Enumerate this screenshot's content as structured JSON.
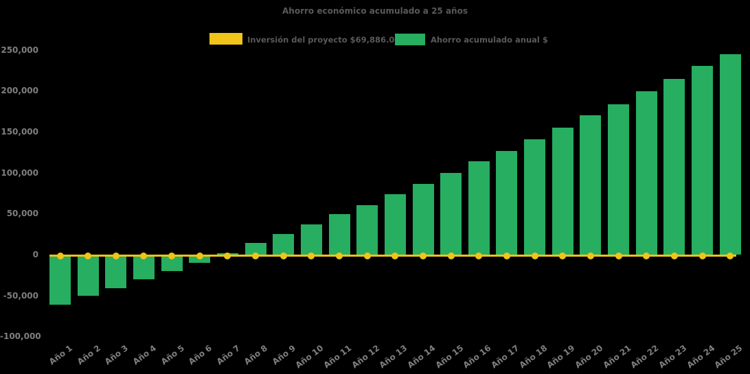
{
  "chart": {
    "title": "Ahorro económico acumulado a 25 años",
    "background_color": "#000000",
    "title_color": "#595959",
    "axis_label_color": "#7f7f7f",
    "legend": [
      {
        "label": "Inversión del proyecto $69,886.02",
        "color": "#f0c419",
        "type": "line"
      },
      {
        "label": "Ahorro acumulado anual $",
        "color": "#27ae60",
        "type": "bar"
      }
    ]
  },
  "chart_data": {
    "type": "bar",
    "title": "Ahorro económico acumulado a 25 años",
    "categories": [
      "Año 1",
      "Año 2",
      "Año 3",
      "Año 4",
      "Año 5",
      "Año 6",
      "Año 7",
      "Año 8",
      "Año 9",
      "Año 10",
      "Año 11",
      "Año 12",
      "Año 13",
      "Año 14",
      "Año 15",
      "Año 16",
      "Año 17",
      "Año 18",
      "Año 19",
      "Año 20",
      "Año 21",
      "Año 22",
      "Año 23",
      "Año 24",
      "Año 25"
    ],
    "series": [
      {
        "name": "Ahorro acumulado anual $",
        "type": "bar",
        "color": "#27ae60",
        "values": [
          -60500,
          -50000,
          -40500,
          -29500,
          -20000,
          -9500,
          2000,
          14500,
          25500,
          37500,
          50000,
          61000,
          74500,
          87000,
          100500,
          114000,
          127000,
          141000,
          155500,
          170500,
          184000,
          199500,
          215000,
          230500,
          245500
        ]
      },
      {
        "name": "Inversión del proyecto $69,886.02",
        "type": "line",
        "color": "#f0c419",
        "marker": "circle",
        "values": [
          0,
          0,
          0,
          0,
          0,
          0,
          0,
          0,
          0,
          0,
          0,
          0,
          0,
          0,
          0,
          0,
          0,
          0,
          0,
          0,
          0,
          0,
          0,
          0,
          0
        ]
      }
    ],
    "xlabel": "",
    "ylabel": "",
    "ylim": [
      -100000,
      250000
    ],
    "ytick_interval": 50000,
    "yticks": [
      {
        "label": "250,000",
        "value": 250000
      },
      {
        "label": "200,000",
        "value": 200000
      },
      {
        "label": "150,000",
        "value": 150000
      },
      {
        "label": "100,000",
        "value": 100000
      },
      {
        "label": "50,000",
        "value": 50000
      },
      {
        "label": "0",
        "value": 0
      },
      {
        "label": "-50,000",
        "value": -50000
      },
      {
        "label": "-100,000",
        "value": -100000
      }
    ],
    "grid": false,
    "legend_position": "top"
  }
}
